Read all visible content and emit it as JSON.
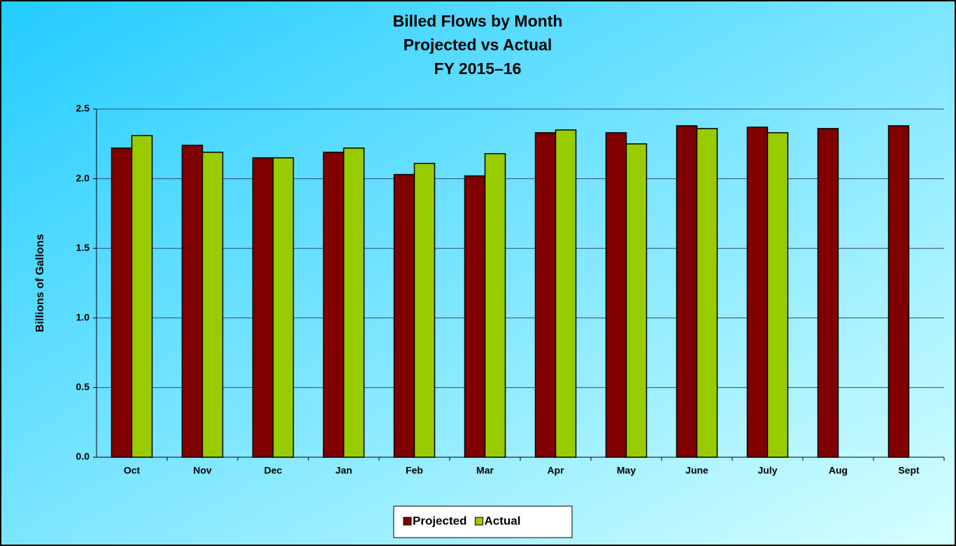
{
  "chart_data": {
    "type": "bar",
    "title": [
      "Billed Flows by Month",
      "Projected vs Actual",
      "FY 2015–16"
    ],
    "y_label": "Billions of Gallons",
    "categories": [
      "Oct",
      "Nov",
      "Dec",
      "Jan",
      "Feb",
      "Mar",
      "Apr",
      "May",
      "June",
      "July",
      "Aug",
      "Sept"
    ],
    "series": [
      {
        "name": "Projected",
        "color": "#800000",
        "values": [
          2.22,
          2.24,
          2.15,
          2.19,
          2.03,
          2.02,
          2.33,
          2.33,
          2.38,
          2.37,
          2.36,
          2.38
        ]
      },
      {
        "name": "Actual",
        "color": "#99cc00",
        "values": [
          2.31,
          2.19,
          2.15,
          2.22,
          2.11,
          2.18,
          2.35,
          2.25,
          2.36,
          2.33,
          null,
          null
        ]
      }
    ],
    "ylim": [
      0,
      2.5
    ],
    "yticks": [
      {
        "value": 0,
        "label": "0.0"
      },
      0.5,
      {
        "value": 1,
        "label": "1.0"
      },
      1.5,
      {
        "value": 2,
        "label": "2.0"
      },
      2.5
    ],
    "grid": true,
    "legend": "bottom"
  }
}
